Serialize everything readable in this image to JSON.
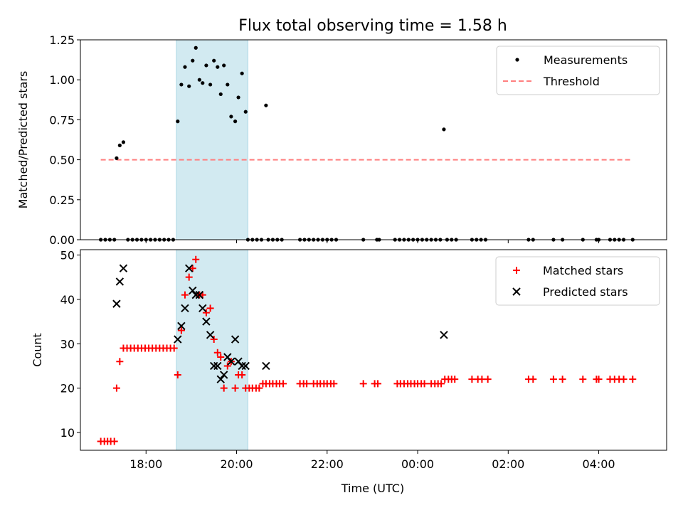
{
  "chart_data": {
    "type": "scatter",
    "title": "Flux total observing time = 1.58 h",
    "x_unit": "hours since 00:00 UTC (negative = previous day)",
    "xlabel": "Time (UTC)",
    "xlim": [
      -7.45,
      5.5
    ],
    "x_ticks": [
      {
        "value": -6,
        "label": "18:00"
      },
      {
        "value": -4,
        "label": "20:00"
      },
      {
        "value": -2,
        "label": "22:00"
      },
      {
        "value": 0,
        "label": "00:00"
      },
      {
        "value": 2,
        "label": "02:00"
      },
      {
        "value": 4,
        "label": "04:00"
      }
    ],
    "highlight_span": {
      "x_start": -5.33,
      "x_end": -3.75,
      "color": "#add8e6"
    },
    "panels": [
      {
        "id": "ratio",
        "ylabel": "Matched/Predicted stars",
        "ylim": [
          0,
          1.25
        ],
        "y_ticks": [
          {
            "value": 0,
            "label": "0.00"
          },
          {
            "value": 0.25,
            "label": "0.25"
          },
          {
            "value": 0.5,
            "label": "0.50"
          },
          {
            "value": 0.75,
            "label": "0.75"
          },
          {
            "value": 1.0,
            "label": "1.00"
          },
          {
            "value": 1.25,
            "label": "1.25"
          }
        ],
        "legend": {
          "position": "top-right",
          "entries": [
            {
              "label": "Measurements",
              "marker": "dot",
              "color": "#000000"
            },
            {
              "label": "Threshold",
              "marker": "dashed-line",
              "color": "#ff7f7f"
            }
          ]
        },
        "threshold": {
          "name": "Threshold",
          "value": 0.5,
          "x_start": -7.0,
          "x_end": 4.75,
          "color": "#ff7f7f"
        },
        "series": [
          {
            "name": "Measurements",
            "color": "#000000",
            "points": [
              [
                -6.65,
                0.51
              ],
              [
                -6.58,
                0.59
              ],
              [
                -6.5,
                0.61
              ],
              [
                -5.3,
                0.74
              ],
              [
                -5.22,
                0.97
              ],
              [
                -5.14,
                1.08
              ],
              [
                -5.05,
                0.96
              ],
              [
                -4.97,
                1.12
              ],
              [
                -4.9,
                1.2
              ],
              [
                -4.82,
                1.0
              ],
              [
                -4.75,
                0.98
              ],
              [
                -4.67,
                1.09
              ],
              [
                -4.58,
                0.97
              ],
              [
                -4.5,
                1.12
              ],
              [
                -4.42,
                1.08
              ],
              [
                -4.35,
                0.91
              ],
              [
                -4.28,
                1.09
              ],
              [
                -4.2,
                0.97
              ],
              [
                -4.12,
                0.77
              ],
              [
                -4.03,
                0.74
              ],
              [
                -3.96,
                0.89
              ],
              [
                -3.88,
                1.04
              ],
              [
                -3.8,
                0.8
              ],
              [
                -3.35,
                0.84
              ],
              [
                0.58,
                0.69
              ],
              [
                -7.0,
                0
              ],
              [
                -6.9,
                0
              ],
              [
                -6.8,
                0
              ],
              [
                -6.7,
                0
              ],
              [
                -6.4,
                0
              ],
              [
                -6.3,
                0
              ],
              [
                -6.2,
                0
              ],
              [
                -6.1,
                0
              ],
              [
                -6.0,
                0
              ],
              [
                -5.9,
                0
              ],
              [
                -5.8,
                0
              ],
              [
                -5.7,
                0
              ],
              [
                -5.6,
                0
              ],
              [
                -5.5,
                0
              ],
              [
                -5.4,
                0
              ],
              [
                -3.75,
                0
              ],
              [
                -3.65,
                0
              ],
              [
                -3.55,
                0
              ],
              [
                -3.45,
                0
              ],
              [
                -3.3,
                0
              ],
              [
                -3.2,
                0
              ],
              [
                -3.1,
                0
              ],
              [
                -3.0,
                0
              ],
              [
                -2.6,
                0
              ],
              [
                -2.5,
                0
              ],
              [
                -2.4,
                0
              ],
              [
                -2.3,
                0
              ],
              [
                -2.2,
                0
              ],
              [
                -2.1,
                0
              ],
              [
                -2.0,
                0
              ],
              [
                -1.9,
                0
              ],
              [
                -1.8,
                0
              ],
              [
                -1.2,
                0
              ],
              [
                -0.9,
                0
              ],
              [
                -0.85,
                0
              ],
              [
                -0.5,
                0
              ],
              [
                -0.4,
                0
              ],
              [
                -0.3,
                0
              ],
              [
                -0.2,
                0
              ],
              [
                -0.1,
                0
              ],
              [
                0.0,
                0
              ],
              [
                0.1,
                0
              ],
              [
                0.2,
                0
              ],
              [
                0.3,
                0
              ],
              [
                0.4,
                0
              ],
              [
                0.5,
                0
              ],
              [
                0.65,
                0
              ],
              [
                0.75,
                0
              ],
              [
                0.85,
                0
              ],
              [
                1.2,
                0
              ],
              [
                1.3,
                0
              ],
              [
                1.4,
                0
              ],
              [
                1.5,
                0
              ],
              [
                2.45,
                0
              ],
              [
                2.55,
                0
              ],
              [
                3.0,
                0
              ],
              [
                3.2,
                0
              ],
              [
                3.65,
                0
              ],
              [
                3.95,
                0
              ],
              [
                4.0,
                0
              ],
              [
                4.25,
                0
              ],
              [
                4.35,
                0
              ],
              [
                4.45,
                0
              ],
              [
                4.55,
                0
              ],
              [
                4.75,
                0
              ]
            ]
          }
        ]
      },
      {
        "id": "counts",
        "ylabel": "Count",
        "ylim": [
          6,
          51.2
        ],
        "y_ticks": [
          {
            "value": 10,
            "label": "10"
          },
          {
            "value": 20,
            "label": "20"
          },
          {
            "value": 30,
            "label": "30"
          },
          {
            "value": 40,
            "label": "40"
          },
          {
            "value": 50,
            "label": "50"
          }
        ],
        "legend": {
          "position": "top-right",
          "entries": [
            {
              "label": "Matched stars",
              "marker": "plus",
              "color": "#ff0000"
            },
            {
              "label": "Predicted stars",
              "marker": "x",
              "color": "#000000"
            }
          ]
        },
        "series": [
          {
            "name": "Matched stars",
            "marker": "plus",
            "color": "#ff0000",
            "points": [
              [
                -7.0,
                8
              ],
              [
                -6.92,
                8
              ],
              [
                -6.85,
                8
              ],
              [
                -6.78,
                8
              ],
              [
                -6.7,
                8
              ],
              [
                -6.65,
                20
              ],
              [
                -6.58,
                26
              ],
              [
                -6.5,
                29
              ],
              [
                -6.42,
                29
              ],
              [
                -6.34,
                29
              ],
              [
                -6.26,
                29
              ],
              [
                -6.18,
                29
              ],
              [
                -6.1,
                29
              ],
              [
                -6.02,
                29
              ],
              [
                -5.94,
                29
              ],
              [
                -5.86,
                29
              ],
              [
                -5.78,
                29
              ],
              [
                -5.7,
                29
              ],
              [
                -5.62,
                29
              ],
              [
                -5.54,
                29
              ],
              [
                -5.46,
                29
              ],
              [
                -5.38,
                29
              ],
              [
                -5.3,
                23
              ],
              [
                -5.22,
                33
              ],
              [
                -5.14,
                41
              ],
              [
                -5.05,
                45
              ],
              [
                -4.97,
                47
              ],
              [
                -4.9,
                49
              ],
              [
                -4.82,
                41
              ],
              [
                -4.75,
                41
              ],
              [
                -4.67,
                37
              ],
              [
                -4.58,
                38
              ],
              [
                -4.5,
                31
              ],
              [
                -4.42,
                28
              ],
              [
                -4.35,
                27
              ],
              [
                -4.28,
                20
              ],
              [
                -4.2,
                25
              ],
              [
                -4.12,
                26
              ],
              [
                -4.03,
                20
              ],
              [
                -3.96,
                23
              ],
              [
                -3.88,
                23
              ],
              [
                -3.8,
                20
              ],
              [
                -3.72,
                20
              ],
              [
                -3.65,
                20
              ],
              [
                -3.57,
                20
              ],
              [
                -3.5,
                20
              ],
              [
                -3.42,
                21
              ],
              [
                -3.35,
                21
              ],
              [
                -3.27,
                21
              ],
              [
                -3.2,
                21
              ],
              [
                -3.12,
                21
              ],
              [
                -3.05,
                21
              ],
              [
                -2.97,
                21
              ],
              [
                -2.6,
                21
              ],
              [
                -2.52,
                21
              ],
              [
                -2.45,
                21
              ],
              [
                -2.3,
                21
              ],
              [
                -2.22,
                21
              ],
              [
                -2.15,
                21
              ],
              [
                -2.07,
                21
              ],
              [
                -2.0,
                21
              ],
              [
                -1.92,
                21
              ],
              [
                -1.85,
                21
              ],
              [
                -1.2,
                21
              ],
              [
                -0.95,
                21
              ],
              [
                -0.88,
                21
              ],
              [
                -0.45,
                21
              ],
              [
                -0.38,
                21
              ],
              [
                -0.3,
                21
              ],
              [
                -0.22,
                21
              ],
              [
                -0.15,
                21
              ],
              [
                -0.07,
                21
              ],
              [
                0.0,
                21
              ],
              [
                0.08,
                21
              ],
              [
                0.15,
                21
              ],
              [
                0.3,
                21
              ],
              [
                0.38,
                21
              ],
              [
                0.45,
                21
              ],
              [
                0.52,
                21
              ],
              [
                0.6,
                22
              ],
              [
                0.68,
                22
              ],
              [
                0.75,
                22
              ],
              [
                0.82,
                22
              ],
              [
                1.2,
                22
              ],
              [
                1.33,
                22
              ],
              [
                1.42,
                22
              ],
              [
                1.55,
                22
              ],
              [
                2.45,
                22
              ],
              [
                2.55,
                22
              ],
              [
                3.0,
                22
              ],
              [
                3.2,
                22
              ],
              [
                3.65,
                22
              ],
              [
                3.95,
                22
              ],
              [
                4.0,
                22
              ],
              [
                4.25,
                22
              ],
              [
                4.35,
                22
              ],
              [
                4.45,
                22
              ],
              [
                4.55,
                22
              ],
              [
                4.75,
                22
              ]
            ]
          },
          {
            "name": "Predicted stars",
            "marker": "x",
            "color": "#000000",
            "points": [
              [
                -6.65,
                39
              ],
              [
                -6.58,
                44
              ],
              [
                -6.5,
                47
              ],
              [
                -5.3,
                31
              ],
              [
                -5.22,
                34
              ],
              [
                -5.14,
                38
              ],
              [
                -5.05,
                47
              ],
              [
                -4.97,
                42
              ],
              [
                -4.9,
                41
              ],
              [
                -4.82,
                41
              ],
              [
                -4.75,
                38
              ],
              [
                -4.67,
                35
              ],
              [
                -4.58,
                32
              ],
              [
                -4.5,
                25
              ],
              [
                -4.42,
                25
              ],
              [
                -4.35,
                22
              ],
              [
                -4.28,
                23
              ],
              [
                -4.2,
                27
              ],
              [
                -4.12,
                26
              ],
              [
                -4.03,
                31
              ],
              [
                -3.96,
                26
              ],
              [
                -3.88,
                25
              ],
              [
                -3.8,
                25
              ],
              [
                -3.35,
                25
              ],
              [
                0.58,
                32
              ]
            ]
          }
        ]
      }
    ]
  }
}
